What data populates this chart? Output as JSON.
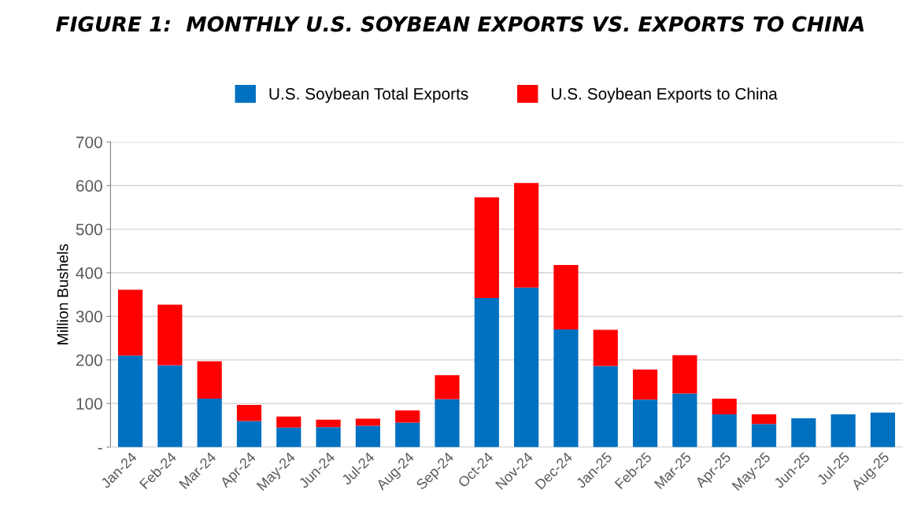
{
  "chart_data": {
    "type": "bar",
    "title": "FIGURE 1:  MONTHLY U.S. SOYBEAN EXPORTS VS. EXPORTS TO CHINA",
    "ylabel": "Million Bushels",
    "categories": [
      "Jan-24",
      "Feb-24",
      "Mar-24",
      "Apr-24",
      "May-24",
      "Jun-24",
      "Jul-24",
      "Aug-24",
      "Sep-24",
      "Oct-24",
      "Nov-24",
      "Dec-24",
      "Jan-25",
      "Feb-25",
      "Mar-25",
      "Apr-25",
      "May-25",
      "Jun-25",
      "Jul-25",
      "Aug-25"
    ],
    "series": [
      {
        "name": "U.S. Soybean Total Exports",
        "color": "#0070c0",
        "values": [
          210,
          188,
          111,
          60,
          45,
          46,
          49,
          56,
          110,
          342,
          366,
          270,
          186,
          109,
          123,
          75,
          53,
          66,
          75,
          79
        ]
      },
      {
        "name": "U.S. Soybean Exports to China",
        "color": "#ff0000",
        "values": [
          151,
          139,
          86,
          37,
          25,
          17,
          16,
          28,
          55,
          231,
          240,
          148,
          83,
          69,
          88,
          36,
          22,
          0,
          0,
          0
        ]
      }
    ],
    "stacked": true,
    "ylim": [
      0,
      700
    ],
    "yticks": [
      {
        "value": 0,
        "label": "-"
      },
      100,
      200,
      300,
      400,
      500,
      600,
      700
    ],
    "grid": "y",
    "legend": "top"
  }
}
